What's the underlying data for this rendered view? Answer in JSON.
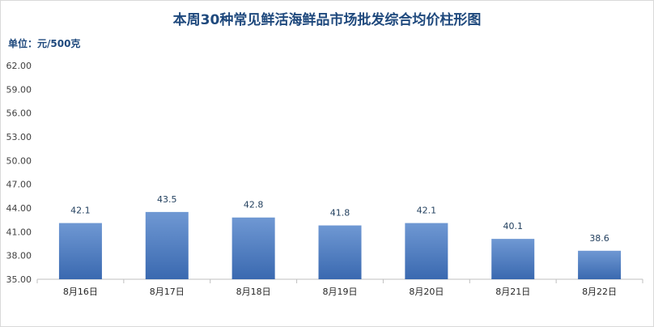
{
  "title": "本周30种常见鲜活海鲜品市场批发综合均价柱形图",
  "unit_label": "单位：元/500克",
  "chart_data": {
    "type": "bar",
    "title": "本周30种常见鲜活海鲜品市场批发综合均价柱形图",
    "xlabel": "",
    "ylabel": "单位：元/500克",
    "categories": [
      "8月16日",
      "8月17日",
      "8月18日",
      "8月19日",
      "8月20日",
      "8月21日",
      "8月22日"
    ],
    "values": [
      42.1,
      43.5,
      42.8,
      41.8,
      42.1,
      40.1,
      38.6
    ],
    "ylim": [
      35,
      62
    ],
    "y_ticks": [
      "35.00",
      "38.00",
      "41.00",
      "44.00",
      "47.00",
      "50.00",
      "53.00",
      "56.00",
      "59.00",
      "62.00"
    ],
    "grid": false,
    "legend": "none",
    "bar_color": "#4a7bc0",
    "bar_gradient_top": "#6f98d3",
    "bar_gradient_bottom": "#3a69b0",
    "axis_color": "#bfbfbf",
    "label_color": "#1f3d5c"
  }
}
